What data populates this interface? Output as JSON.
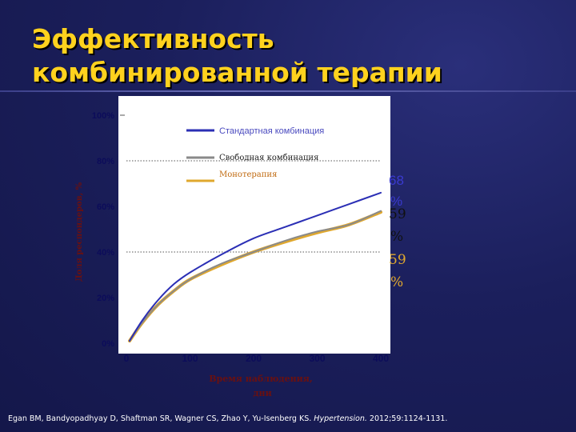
{
  "title": {
    "line1": "Эффективность",
    "line2": "комбинированной терапии"
  },
  "chart_data": {
    "type": "line",
    "xlabel_line1": "Время наблюдения,",
    "xlabel_line2": "дни",
    "ylabel": "Доля респондеров, %",
    "xlim": [
      0,
      400
    ],
    "ylim": [
      0,
      100
    ],
    "x_ticks": [
      {
        "value": 0,
        "label": "0"
      },
      {
        "value": 100,
        "label": "100"
      },
      {
        "value": 200,
        "label": "200"
      },
      {
        "value": 300,
        "label": "300"
      },
      {
        "value": 400,
        "label": "400"
      }
    ],
    "y_ticks": [
      {
        "value": 0,
        "label": "0%"
      },
      {
        "value": 20,
        "label": "20%"
      },
      {
        "value": 40,
        "label": "40%"
      },
      {
        "value": 60,
        "label": "60%"
      },
      {
        "value": 80,
        "label": "80%"
      },
      {
        "value": 100,
        "label": "100%"
      }
    ],
    "gridlines_y": [
      40,
      80
    ],
    "legend_placement": "top-right",
    "series": [
      {
        "name": "Стандартная комбинация",
        "color": "#2b2fb5",
        "points": [
          [
            5,
            1
          ],
          [
            25,
            10
          ],
          [
            50,
            19
          ],
          [
            75,
            26
          ],
          [
            100,
            31
          ],
          [
            150,
            39
          ],
          [
            200,
            46
          ],
          [
            250,
            51
          ],
          [
            300,
            56
          ],
          [
            350,
            61
          ],
          [
            400,
            66
          ]
        ],
        "end_label_line1": "68",
        "end_label_line2": "%"
      },
      {
        "name": "Свободная комбинация",
        "color": "#8a8a8a",
        "points": [
          [
            5,
            1
          ],
          [
            25,
            9
          ],
          [
            50,
            17
          ],
          [
            75,
            23
          ],
          [
            100,
            28
          ],
          [
            150,
            35
          ],
          [
            200,
            40
          ],
          [
            250,
            45
          ],
          [
            300,
            49
          ],
          [
            350,
            52
          ],
          [
            400,
            58
          ]
        ],
        "end_label_line1": "59",
        "end_label_line2": "%"
      },
      {
        "name": "Монотерапия",
        "color": "#e0a82e",
        "points": [
          [
            5,
            1
          ],
          [
            25,
            9
          ],
          [
            50,
            17
          ],
          [
            75,
            23
          ],
          [
            100,
            28
          ],
          [
            150,
            34.5
          ],
          [
            200,
            40
          ],
          [
            250,
            44.5
          ],
          [
            300,
            48.5
          ],
          [
            350,
            52
          ],
          [
            400,
            57.5
          ]
        ],
        "end_label_line1": "59",
        "end_label_line2": "%"
      }
    ]
  },
  "citation": {
    "authors": "Egan BM, Bandyopadhyay D, Shaftman SR, Wagner CS, Zhao Y, Yu-Isenberg KS.",
    "journal": "Hypertension.",
    "details": "2012;59:1124-1131."
  }
}
